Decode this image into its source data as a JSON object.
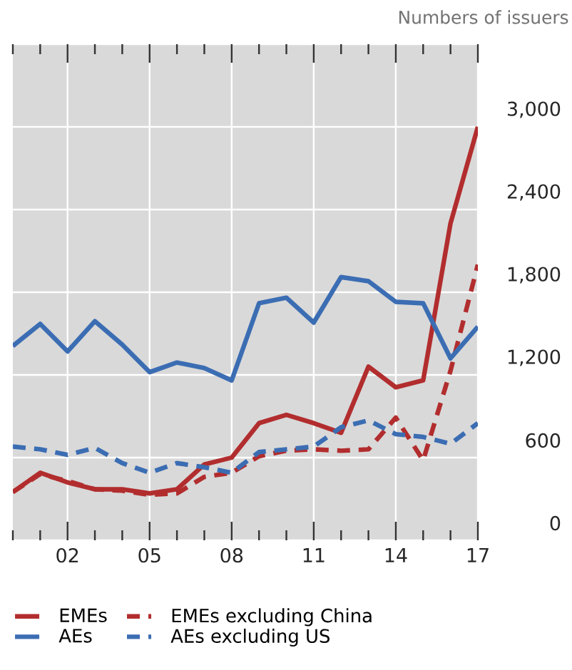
{
  "chart_data": {
    "type": "line",
    "title": "Numbers of issuers",
    "categories": [
      null,
      null,
      "02",
      null,
      null,
      "05",
      null,
      null,
      "08",
      null,
      null,
      "11",
      null,
      null,
      "14",
      null,
      null,
      "17"
    ],
    "series": [
      {
        "name": "EMEs",
        "color": "#b22d2e",
        "line_style": "solid",
        "values": [
          350,
          490,
          420,
          370,
          370,
          340,
          370,
          550,
          600,
          850,
          910,
          850,
          780,
          1260,
          1110,
          1160,
          2300,
          3000
        ]
      },
      {
        "name": "EMEs excluding China",
        "color": "#b22d2e",
        "line_style": "dashed",
        "values": [
          350,
          480,
          430,
          370,
          360,
          330,
          340,
          460,
          490,
          610,
          650,
          660,
          650,
          660,
          890,
          580,
          1230,
          2000
        ]
      },
      {
        "name": "AEs",
        "color": "#3b6db3",
        "line_style": "solid",
        "values": [
          1410,
          1570,
          1370,
          1590,
          1420,
          1220,
          1290,
          1250,
          1160,
          1720,
          1760,
          1580,
          1910,
          1880,
          1730,
          1720,
          1320,
          1550
        ]
      },
      {
        "name": "AEs excluding US",
        "color": "#3b6db3",
        "line_style": "dashed",
        "values": [
          680,
          660,
          620,
          670,
          560,
          490,
          560,
          530,
          490,
          640,
          660,
          680,
          820,
          870,
          770,
          750,
          700,
          850
        ]
      }
    ],
    "ylim": [
      0,
      3600
    ],
    "yticks": [
      0,
      {
        "value": 600,
        "label": "600"
      },
      {
        "value": 1200,
        "label": "1,200"
      },
      {
        "value": 1800,
        "label": "1,800"
      },
      {
        "value": 2400,
        "label": "2,400"
      },
      {
        "value": 3000,
        "label": "3,000"
      },
      {
        "value": 3600,
        "label": null
      }
    ],
    "grid": true,
    "legend": "bottom",
    "marker": "none"
  }
}
